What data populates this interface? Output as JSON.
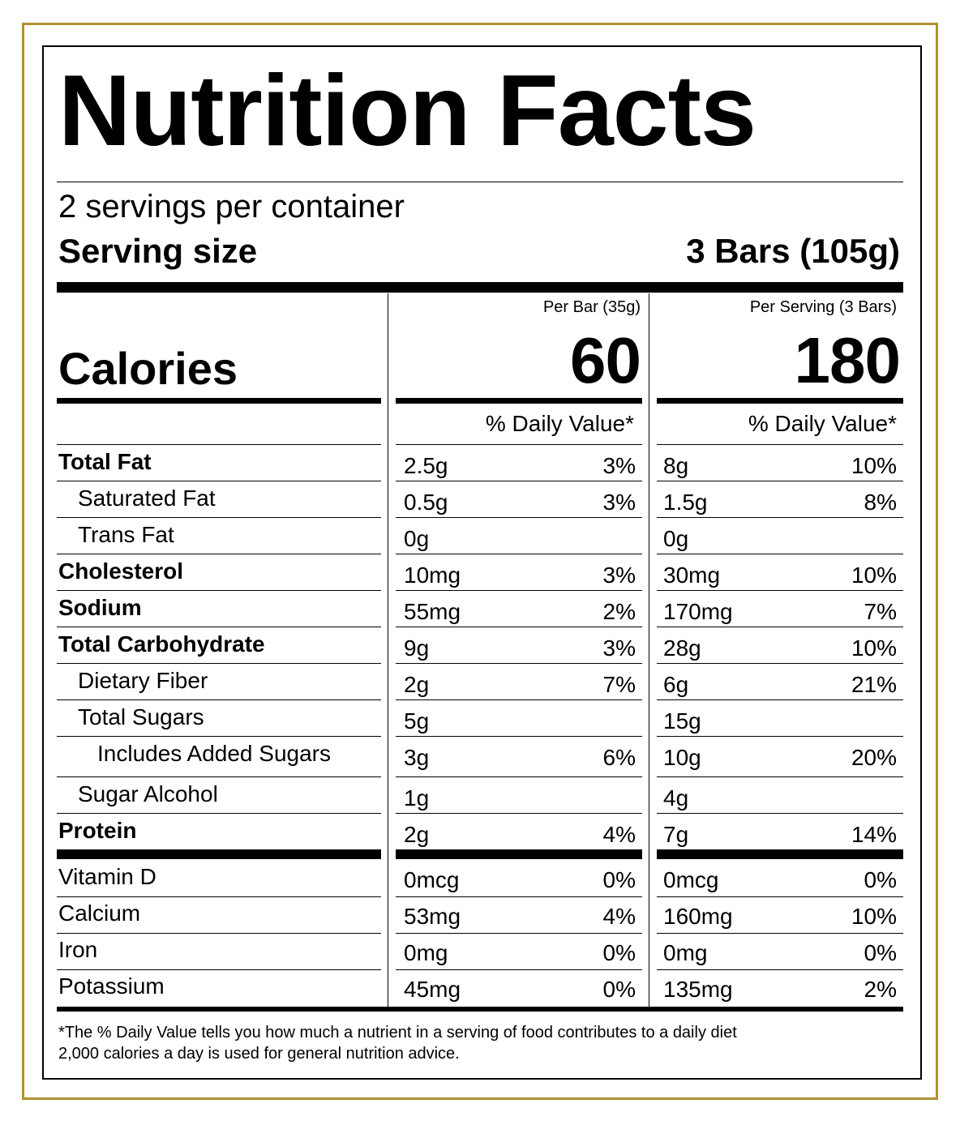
{
  "title": "Nutrition Facts",
  "servings_per_container": "2 servings per container",
  "serving_size_label": "Serving size",
  "serving_size_value": "3 Bars (105g)",
  "calories_label": "Calories",
  "columns": [
    {
      "header": "Per Bar (35g)",
      "calories": "60",
      "dv_header": "% Daily Value*"
    },
    {
      "header": "Per Serving (3 Bars)",
      "calories": "180",
      "dv_header": "% Daily Value*"
    }
  ],
  "nutrients": [
    {
      "name": "Total Fat",
      "bold": true,
      "indent": 0,
      "col1_amount": "2.5g",
      "col1_dv": "3%",
      "col2_amount": "8g",
      "col2_dv": "10%"
    },
    {
      "name": "Saturated Fat",
      "bold": false,
      "indent": 1,
      "col1_amount": "0.5g",
      "col1_dv": "3%",
      "col2_amount": "1.5g",
      "col2_dv": "8%"
    },
    {
      "name": "Trans Fat",
      "bold": false,
      "indent": 1,
      "col1_amount": "0g",
      "col1_dv": "",
      "col2_amount": "0g",
      "col2_dv": ""
    },
    {
      "name": "Cholesterol",
      "bold": true,
      "indent": 0,
      "col1_amount": "10mg",
      "col1_dv": "3%",
      "col2_amount": "30mg",
      "col2_dv": "10%"
    },
    {
      "name": "Sodium",
      "bold": true,
      "indent": 0,
      "col1_amount": "55mg",
      "col1_dv": "2%",
      "col2_amount": "170mg",
      "col2_dv": "7%"
    },
    {
      "name": "Total Carbohydrate",
      "bold": true,
      "indent": 0,
      "col1_amount": "9g",
      "col1_dv": "3%",
      "col2_amount": "28g",
      "col2_dv": "10%"
    },
    {
      "name": "Dietary Fiber",
      "bold": false,
      "indent": 1,
      "col1_amount": "2g",
      "col1_dv": "7%",
      "col2_amount": "6g",
      "col2_dv": "21%"
    },
    {
      "name": "Total Sugars",
      "bold": false,
      "indent": 1,
      "col1_amount": "5g",
      "col1_dv": "",
      "col2_amount": "15g",
      "col2_dv": ""
    },
    {
      "name": "Includes Added Sugars",
      "bold": false,
      "indent": 2,
      "col1_amount": "3g",
      "col1_dv": "6%",
      "col2_amount": "10g",
      "col2_dv": "20%"
    },
    {
      "name": "Sugar Alcohol",
      "bold": false,
      "indent": 1,
      "col1_amount": "1g",
      "col1_dv": "",
      "col2_amount": "4g",
      "col2_dv": ""
    },
    {
      "name": "Protein",
      "bold": true,
      "indent": 0,
      "col1_amount": "2g",
      "col1_dv": "4%",
      "col2_amount": "7g",
      "col2_dv": "14%"
    }
  ],
  "vitamins": [
    {
      "name": "Vitamin D",
      "col1_amount": "0mcg",
      "col1_dv": "0%",
      "col2_amount": "0mcg",
      "col2_dv": "0%"
    },
    {
      "name": "Calcium",
      "col1_amount": "53mg",
      "col1_dv": "4%",
      "col2_amount": "160mg",
      "col2_dv": "10%"
    },
    {
      "name": "Iron",
      "col1_amount": "0mg",
      "col1_dv": "0%",
      "col2_amount": "0mg",
      "col2_dv": "0%"
    },
    {
      "name": "Potassium",
      "col1_amount": "45mg",
      "col1_dv": "0%",
      "col2_amount": "135mg",
      "col2_dv": "2%"
    }
  ],
  "footnote_line1": "*The % Daily Value tells you how much a nutrient in a serving of food contributes to a daily diet",
  "footnote_line2": "2,000 calories a day is used for general nutrition advice.",
  "colors": {
    "frame": "#b0922f",
    "text": "#000000"
  }
}
